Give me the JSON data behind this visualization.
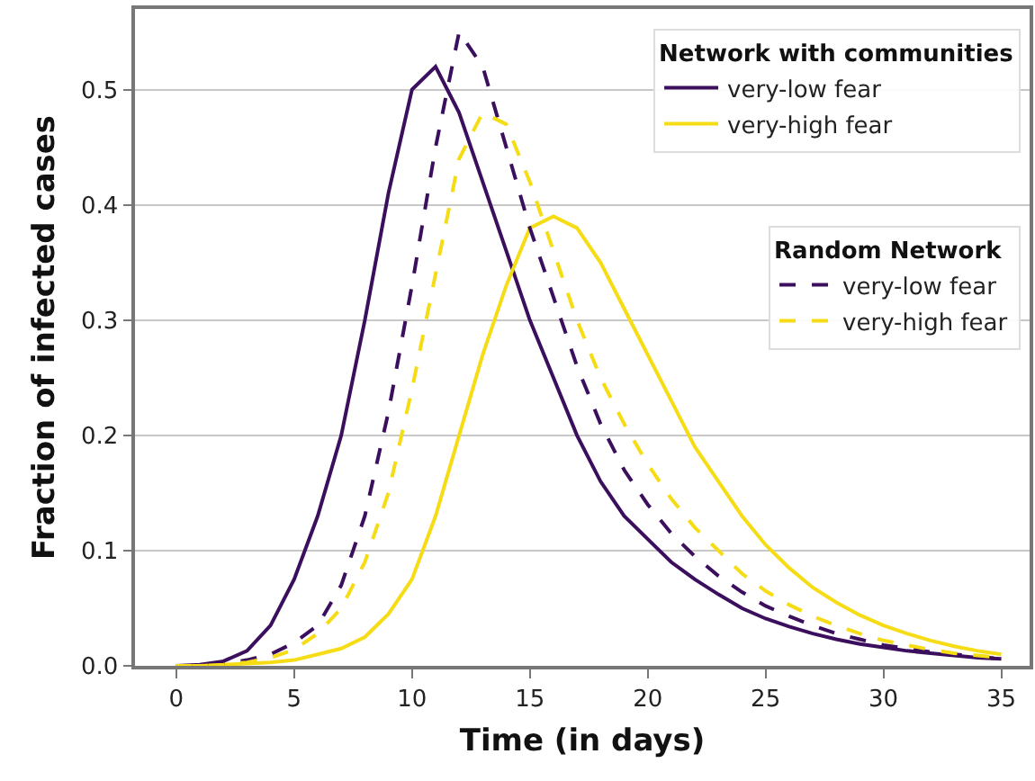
{
  "chart_data": {
    "type": "line",
    "xlabel": "Time (in days)",
    "ylabel": "Fraction of infected cases",
    "legend_title": [
      "Network with communities",
      "Random Network"
    ],
    "x": [
      0,
      1,
      2,
      3,
      4,
      5,
      6,
      7,
      8,
      9,
      10,
      11,
      12,
      13,
      14,
      15,
      16,
      17,
      18,
      19,
      20,
      21,
      22,
      23,
      24,
      25,
      26,
      27,
      28,
      29,
      30,
      31,
      32,
      33,
      34,
      35
    ],
    "series": [
      {
        "name": "very-low fear",
        "color": "#3b0f5e",
        "line_style": "solid",
        "values": [
          0,
          0.001,
          0.004,
          0.013,
          0.035,
          0.075,
          0.13,
          0.2,
          0.3,
          0.41,
          0.5,
          0.52,
          0.48,
          0.42,
          0.36,
          0.3,
          0.25,
          0.2,
          0.16,
          0.13,
          0.11,
          0.09,
          0.075,
          0.062,
          0.05,
          0.041,
          0.034,
          0.028,
          0.023,
          0.019,
          0.016,
          0.013,
          0.011,
          0.009,
          0.007,
          0.006
        ]
      },
      {
        "name": "very-high fear",
        "color": "#f5dc14",
        "line_style": "solid",
        "values": [
          0,
          0,
          0.001,
          0.002,
          0.003,
          0.005,
          0.01,
          0.015,
          0.025,
          0.045,
          0.075,
          0.13,
          0.2,
          0.27,
          0.33,
          0.38,
          0.39,
          0.38,
          0.35,
          0.31,
          0.27,
          0.23,
          0.19,
          0.16,
          0.13,
          0.105,
          0.085,
          0.068,
          0.055,
          0.044,
          0.035,
          0.028,
          0.022,
          0.017,
          0.013,
          0.01
        ]
      },
      {
        "name": "very-low fear",
        "color": "#3b0f5e",
        "line_style": "dashed",
        "values": [
          0,
          0,
          0.002,
          0.005,
          0.01,
          0.02,
          0.035,
          0.07,
          0.13,
          0.22,
          0.33,
          0.45,
          0.55,
          0.52,
          0.45,
          0.38,
          0.32,
          0.26,
          0.21,
          0.17,
          0.14,
          0.115,
          0.095,
          0.078,
          0.064,
          0.052,
          0.043,
          0.035,
          0.028,
          0.023,
          0.018,
          0.015,
          0.012,
          0.01,
          0.008,
          0.006
        ]
      },
      {
        "name": "very-high fear",
        "color": "#f5dc14",
        "line_style": "dashed",
        "values": [
          0,
          0,
          0.001,
          0.003,
          0.007,
          0.014,
          0.028,
          0.05,
          0.09,
          0.15,
          0.24,
          0.34,
          0.44,
          0.48,
          0.47,
          0.42,
          0.36,
          0.3,
          0.25,
          0.21,
          0.175,
          0.145,
          0.12,
          0.1,
          0.08,
          0.065,
          0.053,
          0.043,
          0.035,
          0.028,
          0.022,
          0.018,
          0.014,
          0.011,
          0.009,
          0.007
        ]
      }
    ],
    "xlim": [
      -1.75,
      36.2
    ],
    "xticks": [
      0,
      5,
      10,
      15,
      20,
      25,
      30,
      35
    ],
    "ylim": [
      0,
      0.57
    ],
    "yticks": [
      {
        "value": 0,
        "label": "0.0"
      },
      {
        "value": 0.1,
        "label": "0.1"
      },
      {
        "value": 0.2,
        "label": "0.2"
      },
      {
        "value": 0.3,
        "label": "0.3"
      },
      {
        "value": 0.4,
        "label": "0.4"
      },
      {
        "value": 0.5,
        "label": "0.5"
      }
    ],
    "grid": "y",
    "legend": "top right",
    "marker": "none"
  }
}
